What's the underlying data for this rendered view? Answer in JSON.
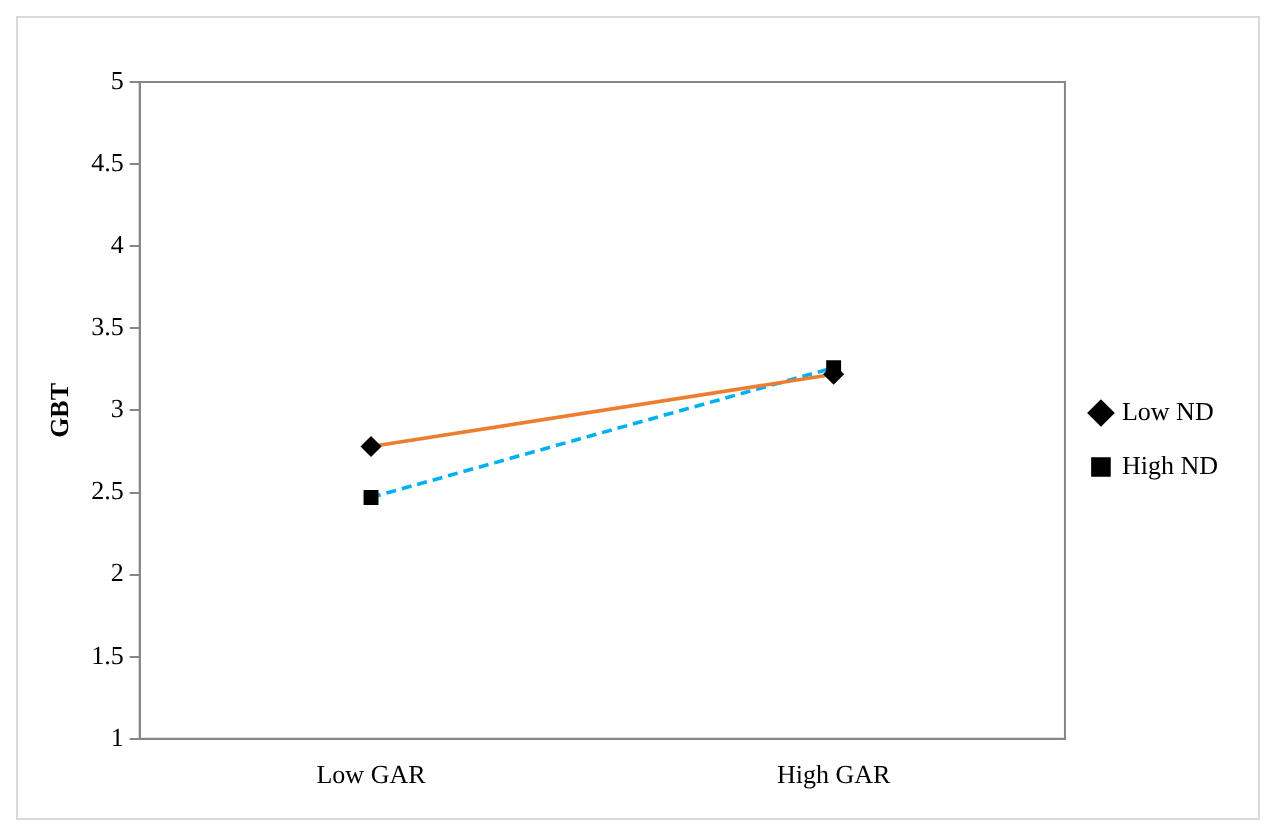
{
  "chart_data": {
    "type": "line",
    "ylabel": "GBT",
    "categories": [
      "Low GAR",
      "High GAR"
    ],
    "series": [
      {
        "name": "Low ND",
        "color": "#ed7d31",
        "values": [
          2.78,
          3.22
        ],
        "marker": "diamond",
        "line_style": "solid"
      },
      {
        "name": "High ND",
        "color": "#00b0f0",
        "values": [
          2.47,
          3.26
        ],
        "marker": "square",
        "line_style": "dashed"
      }
    ],
    "ylim": [
      1,
      5
    ],
    "yticks": [
      1,
      1.5,
      2,
      2.5,
      3,
      3.5,
      4,
      4.5,
      5
    ],
    "grid": false,
    "legend": "right"
  }
}
